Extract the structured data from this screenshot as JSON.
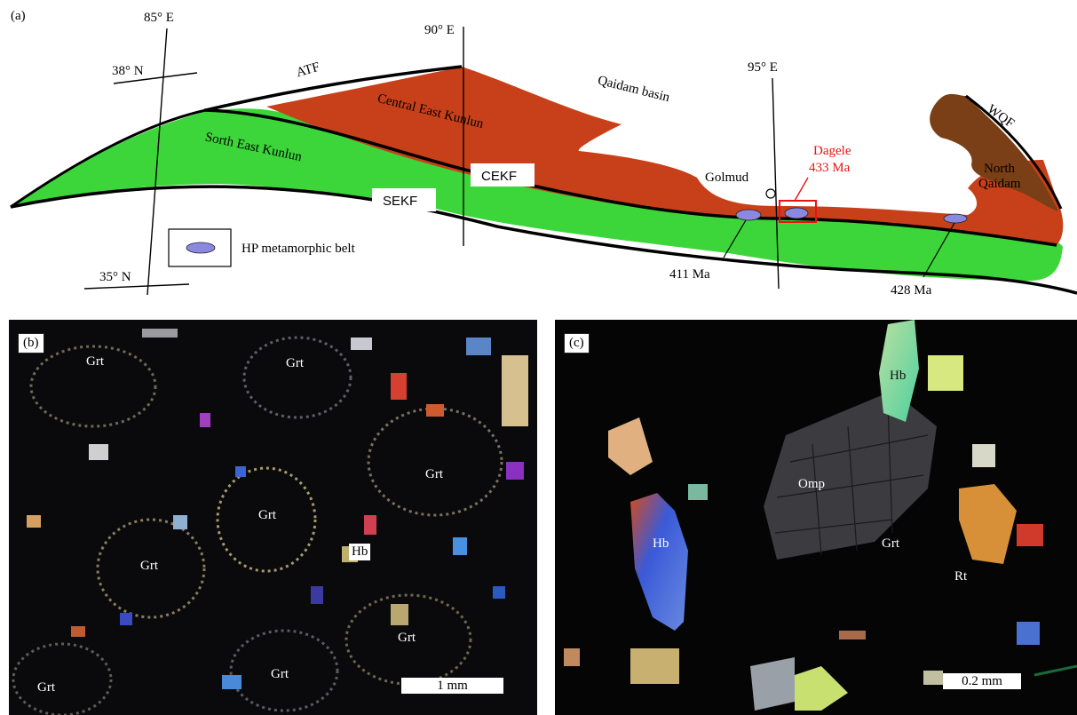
{
  "panel_a": {
    "label": "(a)",
    "long_85": "85° E",
    "long_90": "90° E",
    "long_95": "95° E",
    "lat_38": "38° N",
    "lat_35": "35° N",
    "atf": "ATF",
    "qaidam_basin": "Qaidam basin",
    "central_east_kunlun": "Central East Kunlun",
    "sorth_east_kunlun": "Sorth East Kunlun",
    "cekf": "CEKF",
    "sekf": "SEKF",
    "golmud": "Golmud",
    "dagele": "Dagele",
    "dagele_age": "433 Ma",
    "age_411": "411 Ma",
    "age_428": "428 Ma",
    "wqf": "WQF",
    "north_qaidam_1": "North",
    "north_qaidam_2": "Qaidam",
    "legend_label": "HP metamorphic belt",
    "colors": {
      "central": "#c8401a",
      "south": "#3cd63a",
      "north_qaidam": "#7a3f16",
      "hp": "#8a88e0",
      "dagele": "#ee1111"
    }
  },
  "panel_b": {
    "label": "(b)",
    "minerals": [
      "Grt",
      "Grt",
      "Grt",
      "Grt",
      "Grt",
      "Grt",
      "Grt",
      "Grt"
    ],
    "hb_tag": "Hb",
    "scale": "1 mm"
  },
  "panel_c": {
    "label": "(c)",
    "hb_top": "Hb",
    "omp": "Omp",
    "hb_left": "Hb",
    "grt": "Grt",
    "rt": "Rt",
    "scale": "0.2 mm"
  }
}
